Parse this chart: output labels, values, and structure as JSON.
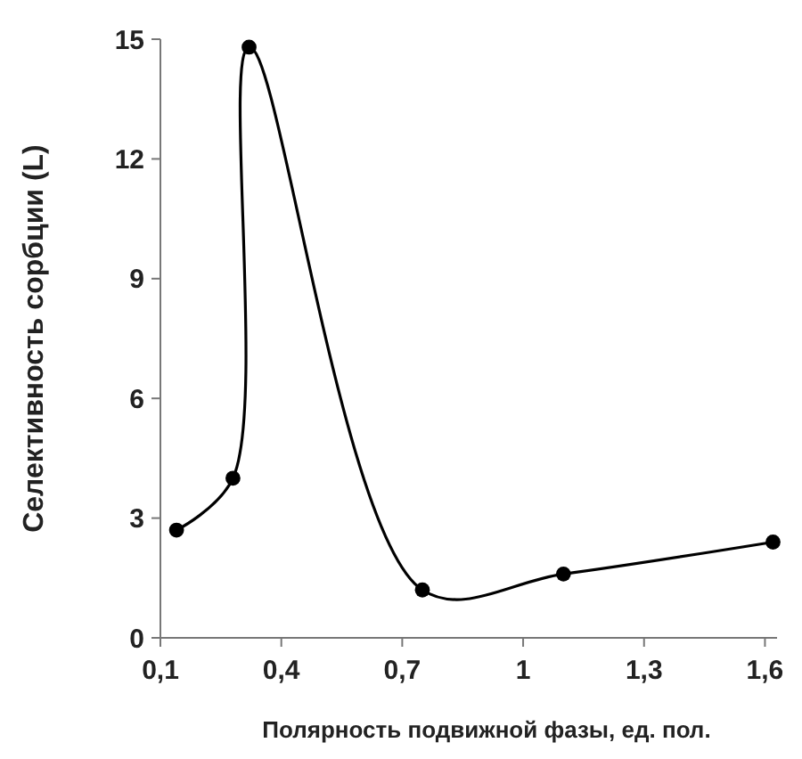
{
  "chart_data": {
    "type": "line",
    "xlabel": "Полярность подвижной фазы, ед. пол.",
    "ylabel": "Селективность сорбции (L)",
    "x": [
      0.14,
      0.28,
      0.32,
      0.75,
      1.1,
      1.62
    ],
    "series": [
      {
        "color": "#000000",
        "values": [
          2.7,
          4.0,
          14.8,
          1.2,
          1.6,
          2.4
        ]
      }
    ],
    "xlim": [
      0.1,
      1.63
    ],
    "xticks": [
      {
        "value": 0.1,
        "label": "0,1"
      },
      {
        "value": 0.4,
        "label": "0,4"
      },
      {
        "value": 0.7,
        "label": "0,7"
      },
      1,
      {
        "value": 1.3,
        "label": "1,3"
      },
      {
        "value": 1.6,
        "label": "1,6"
      }
    ],
    "ylim": [
      0,
      15
    ],
    "yticks": [
      0,
      3,
      6,
      9,
      12,
      15
    ],
    "marker": "circle",
    "line_style": "solid",
    "grid": false
  }
}
